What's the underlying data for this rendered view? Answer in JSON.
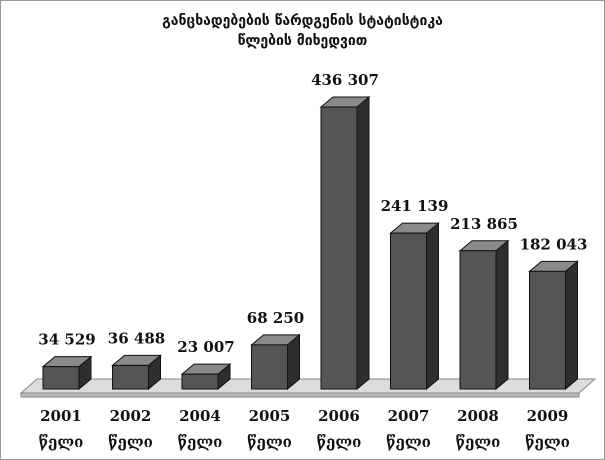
{
  "chart_data": {
    "type": "bar3d",
    "title": "განცხადებების წარდგენის სტატისტიკა\nწლების მიხედვით",
    "categories": [
      "2001\nწელი",
      "2002\nწელი",
      "2004\nწელი",
      "2005\nწელი",
      "2006\nწელი",
      "2007\nწელი",
      "2008\nწელი",
      "2009\nწელი"
    ],
    "values": [
      34529,
      36488,
      23007,
      68250,
      436307,
      241139,
      213865,
      182043
    ],
    "value_labels": [
      "34 529",
      "36 488",
      "23 007",
      "68 250",
      "436 307",
      "241 139",
      "213 865",
      "182 043"
    ],
    "color": "#555555"
  }
}
